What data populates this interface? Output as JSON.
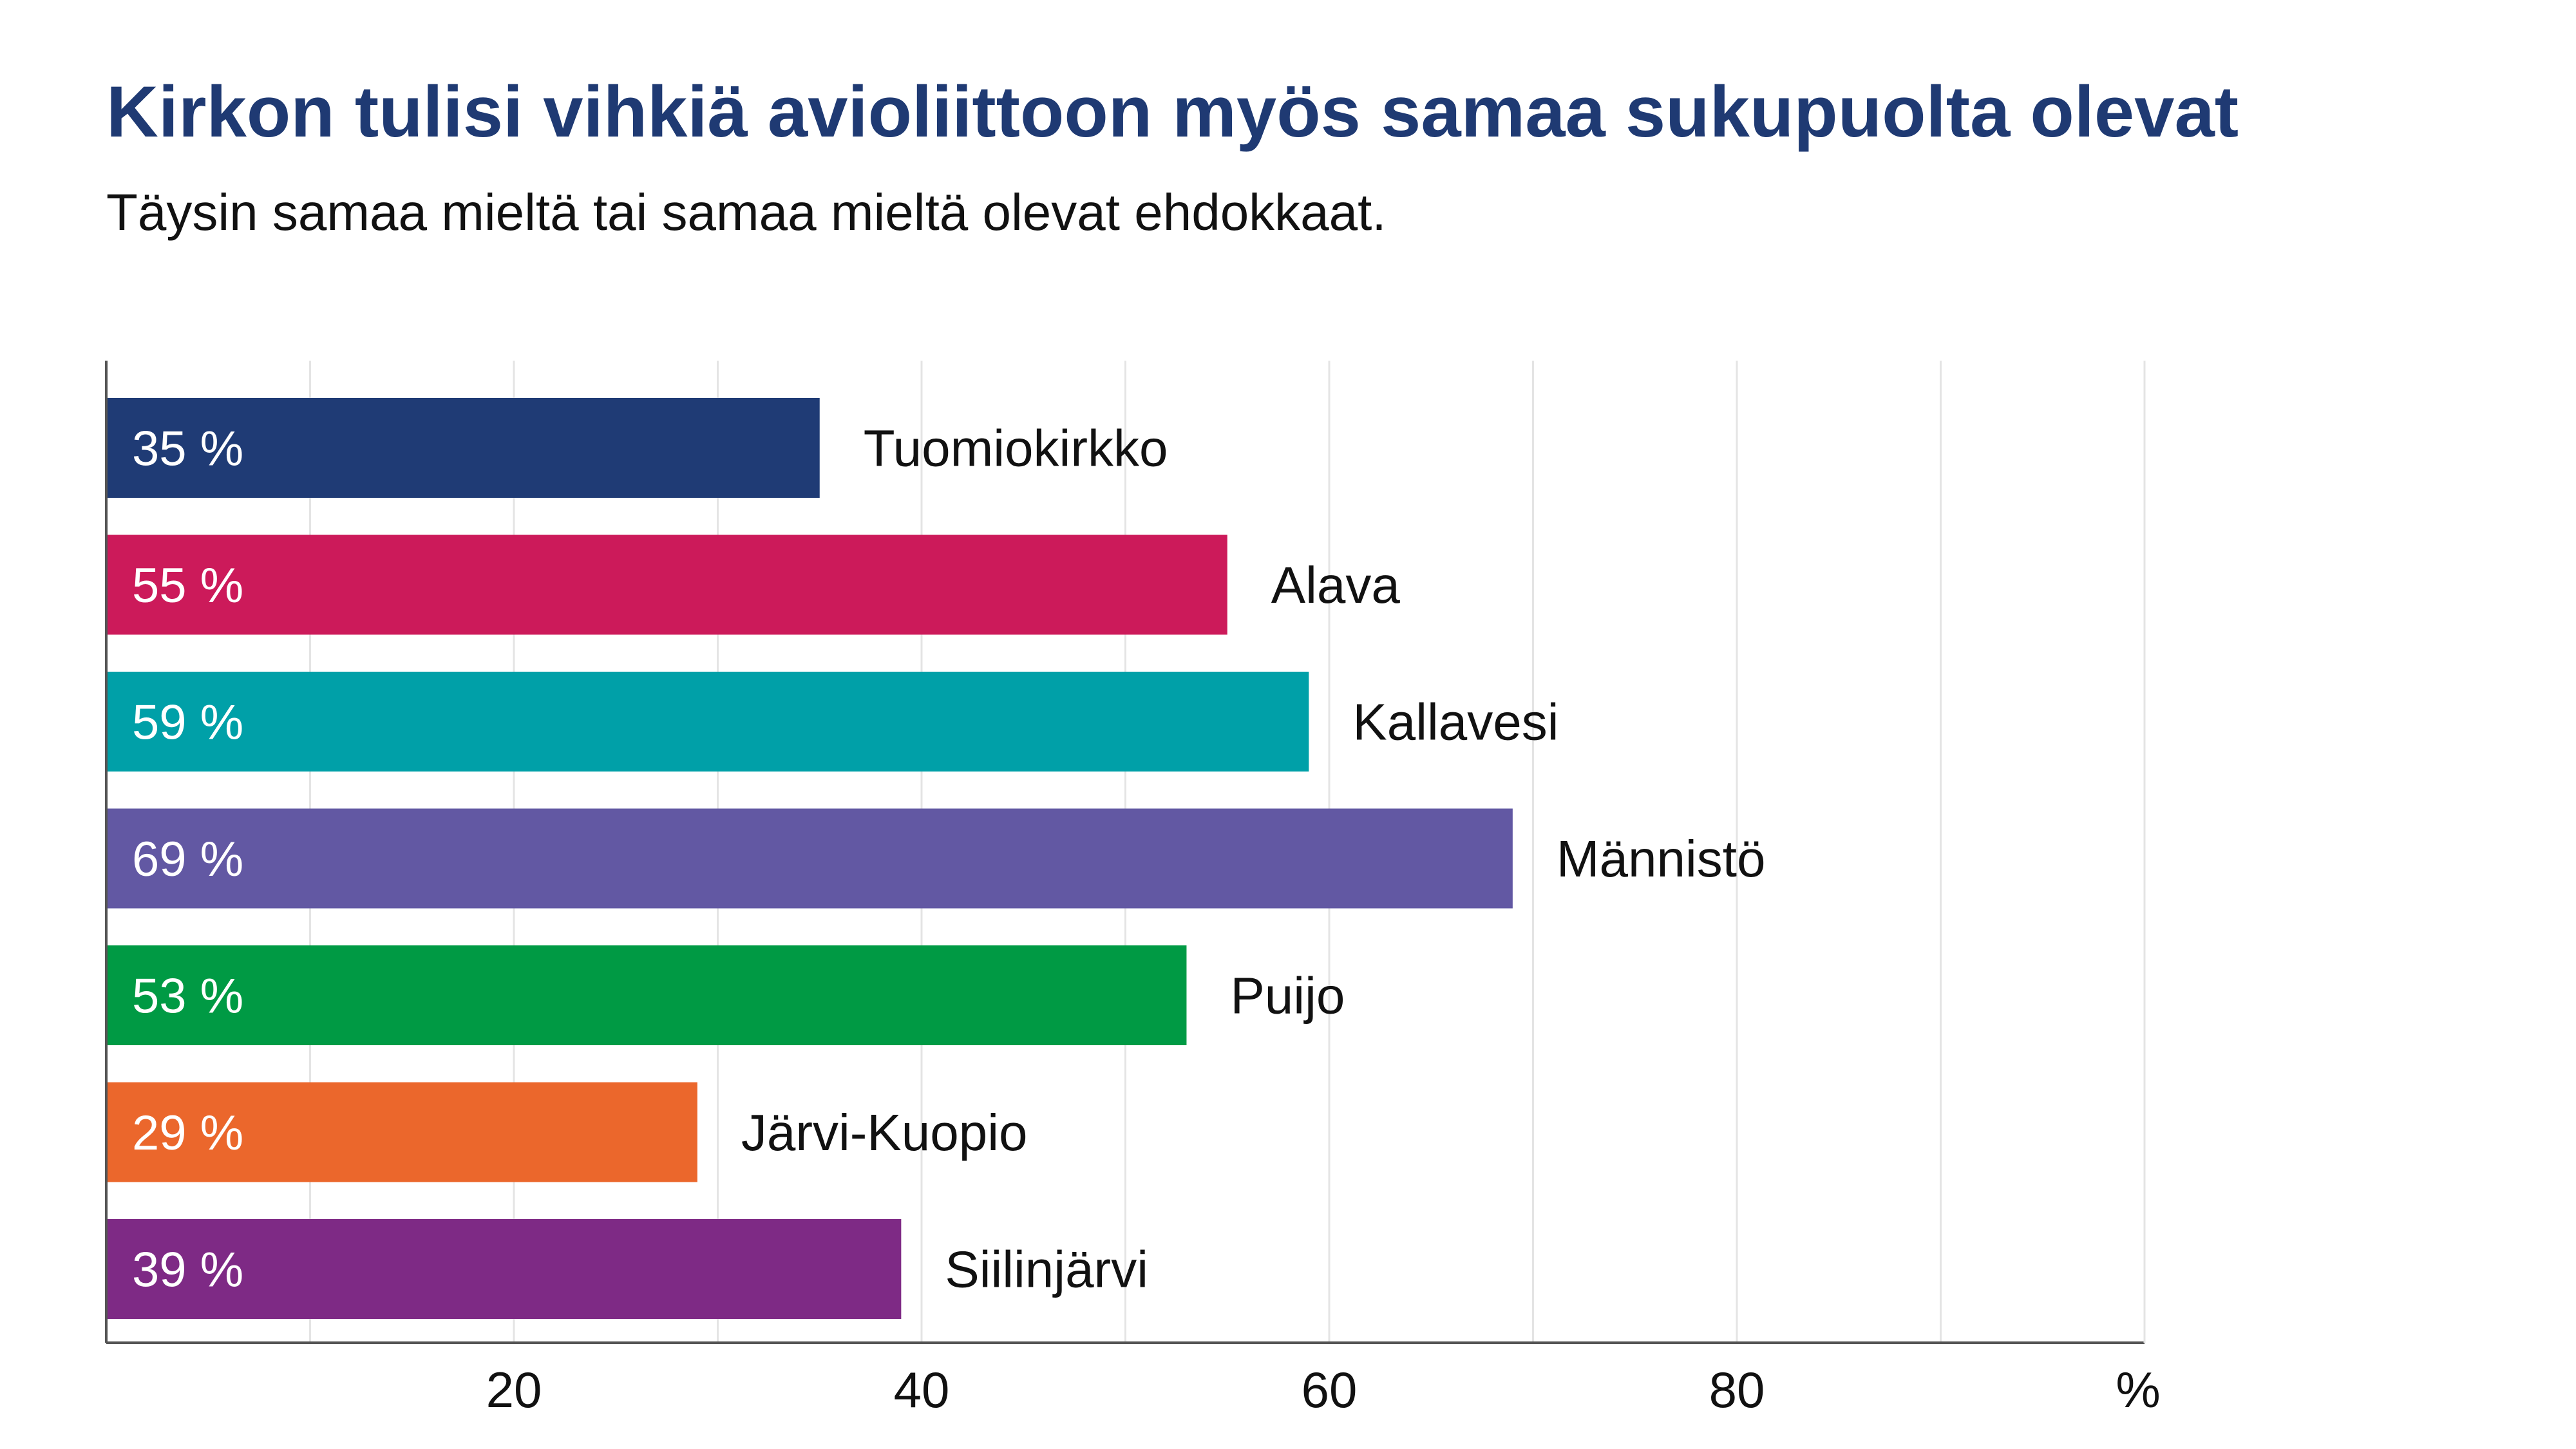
{
  "title": "Kirkon tulisi vihkiä avioliittoon myös samaa sukupuolta olevat",
  "subtitle": "Täysin samaa mieltä tai samaa mieltä olevat ehdokkaat.",
  "colors": {
    "title": "#1f3a73",
    "grid": "#e4e4e4",
    "axis": "#555555"
  },
  "chart_data": {
    "type": "bar",
    "orientation": "horizontal",
    "title": "Kirkon tulisi vihkiä avioliittoon myös samaa sukupuolta olevat",
    "subtitle": "Täysin samaa mieltä tai samaa mieltä olevat ehdokkaat.",
    "categories": [
      "Tuomiokirkko",
      "Alava",
      "Kallavesi",
      "Männistö",
      "Puijo",
      "Järvi-Kuopio",
      "Siilinjärvi"
    ],
    "values": [
      35,
      55,
      59,
      69,
      53,
      29,
      39
    ],
    "value_labels": [
      "35 %",
      "55 %",
      "59 %",
      "69 %",
      "53 %",
      "29 %",
      "39 %"
    ],
    "bar_colors": [
      "#1f3b75",
      "#cc1a5a",
      "#00a0a8",
      "#6258a3",
      "#009a44",
      "#eb672c",
      "#7e2a85"
    ],
    "xlim": [
      0,
      100
    ],
    "x_ticks": [
      20,
      40,
      60,
      80
    ],
    "x_tick_labels": [
      "20",
      "40",
      "60",
      "80"
    ],
    "x_unit_label": "%",
    "grid": true
  }
}
